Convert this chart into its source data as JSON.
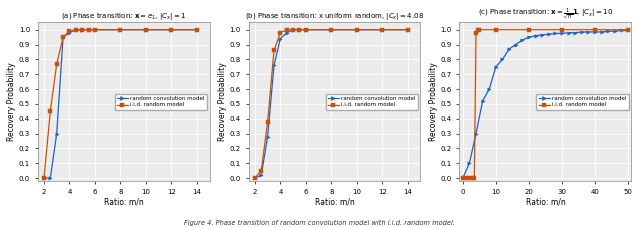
{
  "panels": [
    {
      "title": "(a) Phase transition: $\\mathbf{x} = e_1$, $|C_x| = 1$",
      "xlim": [
        1.5,
        15
      ],
      "xticks": [
        2,
        4,
        6,
        8,
        10,
        12,
        14
      ],
      "xlabel": "Ratio: m/n",
      "iid_x": [
        2.0,
        2.5,
        3.0,
        3.5,
        4.0,
        4.5,
        5.0,
        5.5,
        6.0,
        8.0,
        10.0,
        12.0,
        14.0
      ],
      "iid_y": [
        0.0,
        0.45,
        0.77,
        0.95,
        0.99,
        1.0,
        1.0,
        1.0,
        1.0,
        1.0,
        1.0,
        1.0,
        1.0
      ],
      "conv_x": [
        2.0,
        2.5,
        3.0,
        3.5,
        4.0,
        4.5,
        5.0,
        5.5,
        6.0,
        8.0,
        10.0,
        12.0,
        14.0
      ],
      "conv_y": [
        0.0,
        0.0,
        0.3,
        0.95,
        0.98,
        1.0,
        1.0,
        1.0,
        1.0,
        1.0,
        1.0,
        1.0,
        1.0
      ]
    },
    {
      "title": "(b) Phase transition: x uniform random, $|C_x| = 4.08$",
      "xlim": [
        1.5,
        15
      ],
      "xticks": [
        2,
        4,
        6,
        8,
        10,
        12,
        14
      ],
      "xlabel": "Ratio: m/n",
      "iid_x": [
        2.0,
        2.5,
        3.0,
        3.5,
        4.0,
        4.5,
        5.0,
        5.5,
        6.0,
        8.0,
        10.0,
        12.0,
        14.0
      ],
      "iid_y": [
        0.0,
        0.05,
        0.38,
        0.86,
        0.98,
        1.0,
        1.0,
        1.0,
        1.0,
        1.0,
        1.0,
        1.0,
        1.0
      ],
      "conv_x": [
        2.0,
        2.5,
        3.0,
        3.5,
        4.0,
        4.5,
        5.0,
        5.5,
        6.0,
        8.0,
        10.0,
        12.0,
        14.0
      ],
      "conv_y": [
        0.0,
        0.02,
        0.28,
        0.76,
        0.94,
        0.98,
        1.0,
        1.0,
        1.0,
        1.0,
        1.0,
        1.0,
        1.0
      ]
    },
    {
      "title": "(c) Phase transition: $\\mathbf{x} = \\frac{1}{\\sqrt{n}}\\mathbf{1}$, $|C_x| = 10$",
      "xlim": [
        -1,
        51
      ],
      "xticks": [
        0,
        10,
        20,
        30,
        40,
        50
      ],
      "xlabel": "Ratio: m/n",
      "iid_x": [
        0.0,
        1.0,
        2.0,
        3.0,
        3.5,
        4.0,
        4.5,
        5.0,
        10.0,
        20.0,
        30.0,
        40.0,
        50.0
      ],
      "iid_y": [
        0.0,
        0.0,
        0.0,
        0.0,
        0.0,
        0.98,
        1.0,
        1.0,
        1.0,
        1.0,
        1.0,
        1.0,
        1.0
      ],
      "conv_x": [
        0.0,
        2.0,
        4.0,
        6.0,
        8.0,
        10.0,
        12.0,
        14.0,
        16.0,
        18.0,
        20.0,
        22.0,
        24.0,
        26.0,
        28.0,
        30.0,
        32.0,
        34.0,
        36.0,
        38.0,
        40.0,
        42.0,
        44.0,
        46.0,
        48.0,
        50.0
      ],
      "conv_y": [
        0.0,
        0.1,
        0.3,
        0.52,
        0.6,
        0.75,
        0.8,
        0.87,
        0.9,
        0.93,
        0.95,
        0.96,
        0.965,
        0.97,
        0.975,
        0.975,
        0.98,
        0.98,
        0.985,
        0.985,
        0.985,
        0.985,
        0.99,
        0.99,
        0.995,
        0.995
      ]
    }
  ],
  "iid_color": "#c8500a",
  "conv_color": "#2060c0",
  "bg_color": "#ebebeb",
  "grid_color": "#ffffff",
  "marker_size": 2.5,
  "line_width": 0.9,
  "ylim": [
    -0.02,
    1.05
  ],
  "yticks": [
    0.0,
    0.1,
    0.2,
    0.3,
    0.4,
    0.5,
    0.6,
    0.7,
    0.8,
    0.9,
    1.0
  ],
  "ylabel": "Recovery Probability",
  "fig_caption": "Figure 4. Phase transition of random convolution model with i.i.d. random model."
}
